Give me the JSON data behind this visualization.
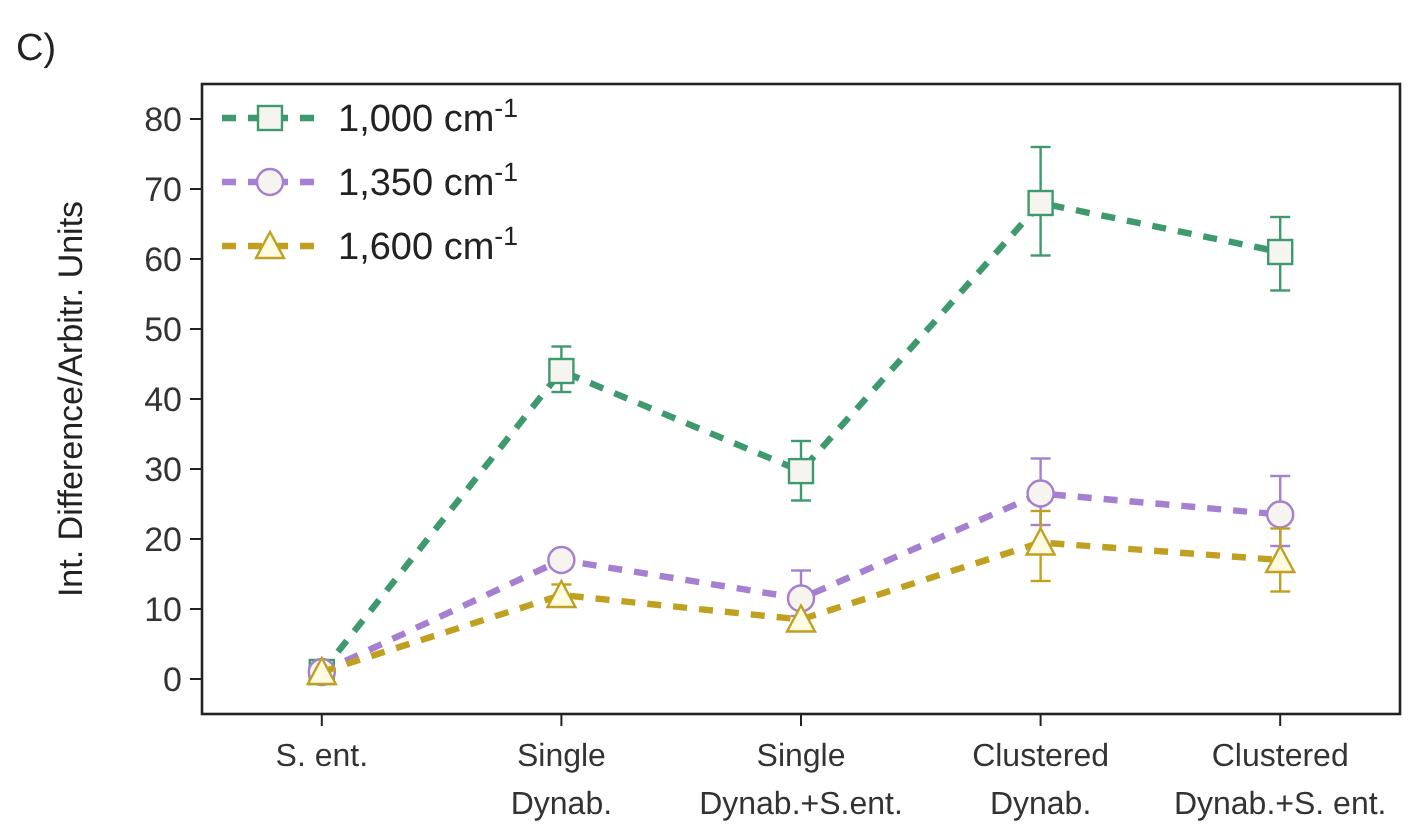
{
  "chart_data": {
    "type": "line",
    "title": "C)",
    "ylabel": "Int. Difference/Arbitr. Units",
    "categories": [
      "S. ent.",
      "Single\nDynab.",
      "Single\nDynab.+S.ent.",
      "Clustered\nDynab.",
      "Clustered\nDynab.+S. ent."
    ],
    "ylim": [
      -5,
      85
    ],
    "yticks": [
      0,
      10,
      20,
      30,
      40,
      50,
      60,
      70,
      80
    ],
    "legend": "top left",
    "line_style": "dashed",
    "grid": false,
    "series": [
      {
        "name": "1,000 cm$^{-1}$",
        "color": "#3e9a6e",
        "marker": "square",
        "values": [
          1,
          44,
          29.7,
          68,
          61
        ],
        "errors": [
          null,
          [
            41,
            47.5
          ],
          [
            25.5,
            34
          ],
          [
            60.5,
            76
          ],
          [
            55.5,
            66
          ]
        ]
      },
      {
        "name": "1,350 cm$^{-1}$",
        "color": "#a57fd0",
        "marker": "circle",
        "values": [
          1,
          17,
          11.5,
          26.5,
          23.5
        ],
        "errors": [
          null,
          null,
          [
            9,
            15.5
          ],
          [
            22,
            31.5
          ],
          [
            19,
            29
          ]
        ]
      },
      {
        "name": "1,600 cm$^{-1}$",
        "color": "#c0a020",
        "marker": "triangle",
        "values": [
          1,
          12,
          8.5,
          19.5,
          17
        ],
        "errors": [
          null,
          [
            10.5,
            13.5
          ],
          null,
          [
            14,
            24
          ],
          [
            12.5,
            21.5
          ]
        ]
      }
    ]
  }
}
